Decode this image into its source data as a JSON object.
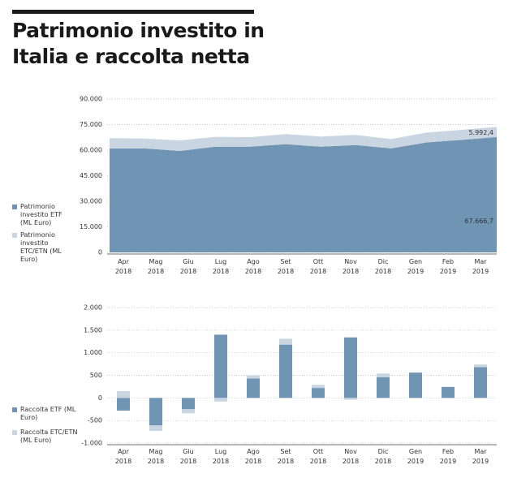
{
  "title": "Patrimonio investito in Italia e raccolta netta",
  "chart_data": [
    {
      "type": "area",
      "categories": [
        "Apr 2018",
        "Mag 2018",
        "Giu 2018",
        "Lug 2018",
        "Ago 2018",
        "Set 2018",
        "Ott 2018",
        "Nov 2018",
        "Dic 2018",
        "Gen 2019",
        "Feb 2019",
        "Mar 2019"
      ],
      "series": [
        {
          "name": "Patrimonio investito ETF (ML Euro)",
          "color": "#7094b4",
          "values": [
            61000,
            61000,
            59500,
            62000,
            62000,
            63500,
            62000,
            63000,
            61000,
            64500,
            66000,
            67666.7
          ],
          "value_labels": [
            null,
            null,
            null,
            null,
            null,
            null,
            null,
            null,
            null,
            null,
            null,
            "67.666,7"
          ]
        },
        {
          "name": "Patrimonio investito ETC/ETN (ML Euro)",
          "color": "#c9d6e2",
          "values": [
            6000,
            5800,
            6200,
            5800,
            5600,
            5900,
            6000,
            5900,
            5500,
            5800,
            5900,
            5992.4
          ],
          "value_labels": [
            null,
            null,
            null,
            null,
            null,
            null,
            null,
            null,
            null,
            null,
            null,
            "5.992,4"
          ]
        }
      ],
      "ylim": [
        0,
        90000
      ],
      "yticks": [
        0,
        {
          "value": 15000,
          "label": "15.000"
        },
        {
          "value": 30000,
          "label": "30.000"
        },
        {
          "value": 45000,
          "label": "45.000"
        },
        {
          "value": 60000,
          "label": "60.000"
        },
        {
          "value": 75000,
          "label": "75.000"
        },
        {
          "value": 90000,
          "label": "90.000"
        }
      ],
      "grid": true,
      "stacked": true
    },
    {
      "type": "bar",
      "categories": [
        "Apr 2018",
        "Mag 2018",
        "Giu 2018",
        "Lug 2018",
        "Ago 2018",
        "Set 2018",
        "Ott 2018",
        "Nov 2018",
        "Dic 2018",
        "Gen 2019",
        "Feb 2019",
        "Mar 2019"
      ],
      "series": [
        {
          "name": "Raccolta ETF (ML Euro)",
          "color": "#7094b4",
          "values": [
            -280,
            -610,
            -250,
            1400,
            430,
            1180,
            220,
            1340,
            460,
            560,
            240,
            680
          ]
        },
        {
          "name": "Raccolta ETC/ETN (ML Euro)",
          "color": "#c9d6e2",
          "values": [
            150,
            -120,
            -90,
            -80,
            70,
            130,
            70,
            -40,
            80,
            10,
            10,
            60
          ]
        }
      ],
      "ylim": [
        -1000,
        2000
      ],
      "yticks": [
        {
          "value": -1000,
          "label": "-1.000"
        },
        -500,
        0,
        500,
        {
          "value": 1000,
          "label": "1.000"
        },
        {
          "value": 1500,
          "label": "1.500"
        },
        {
          "value": 2000,
          "label": "2.000"
        }
      ],
      "grid": true,
      "stacked": true
    }
  ]
}
